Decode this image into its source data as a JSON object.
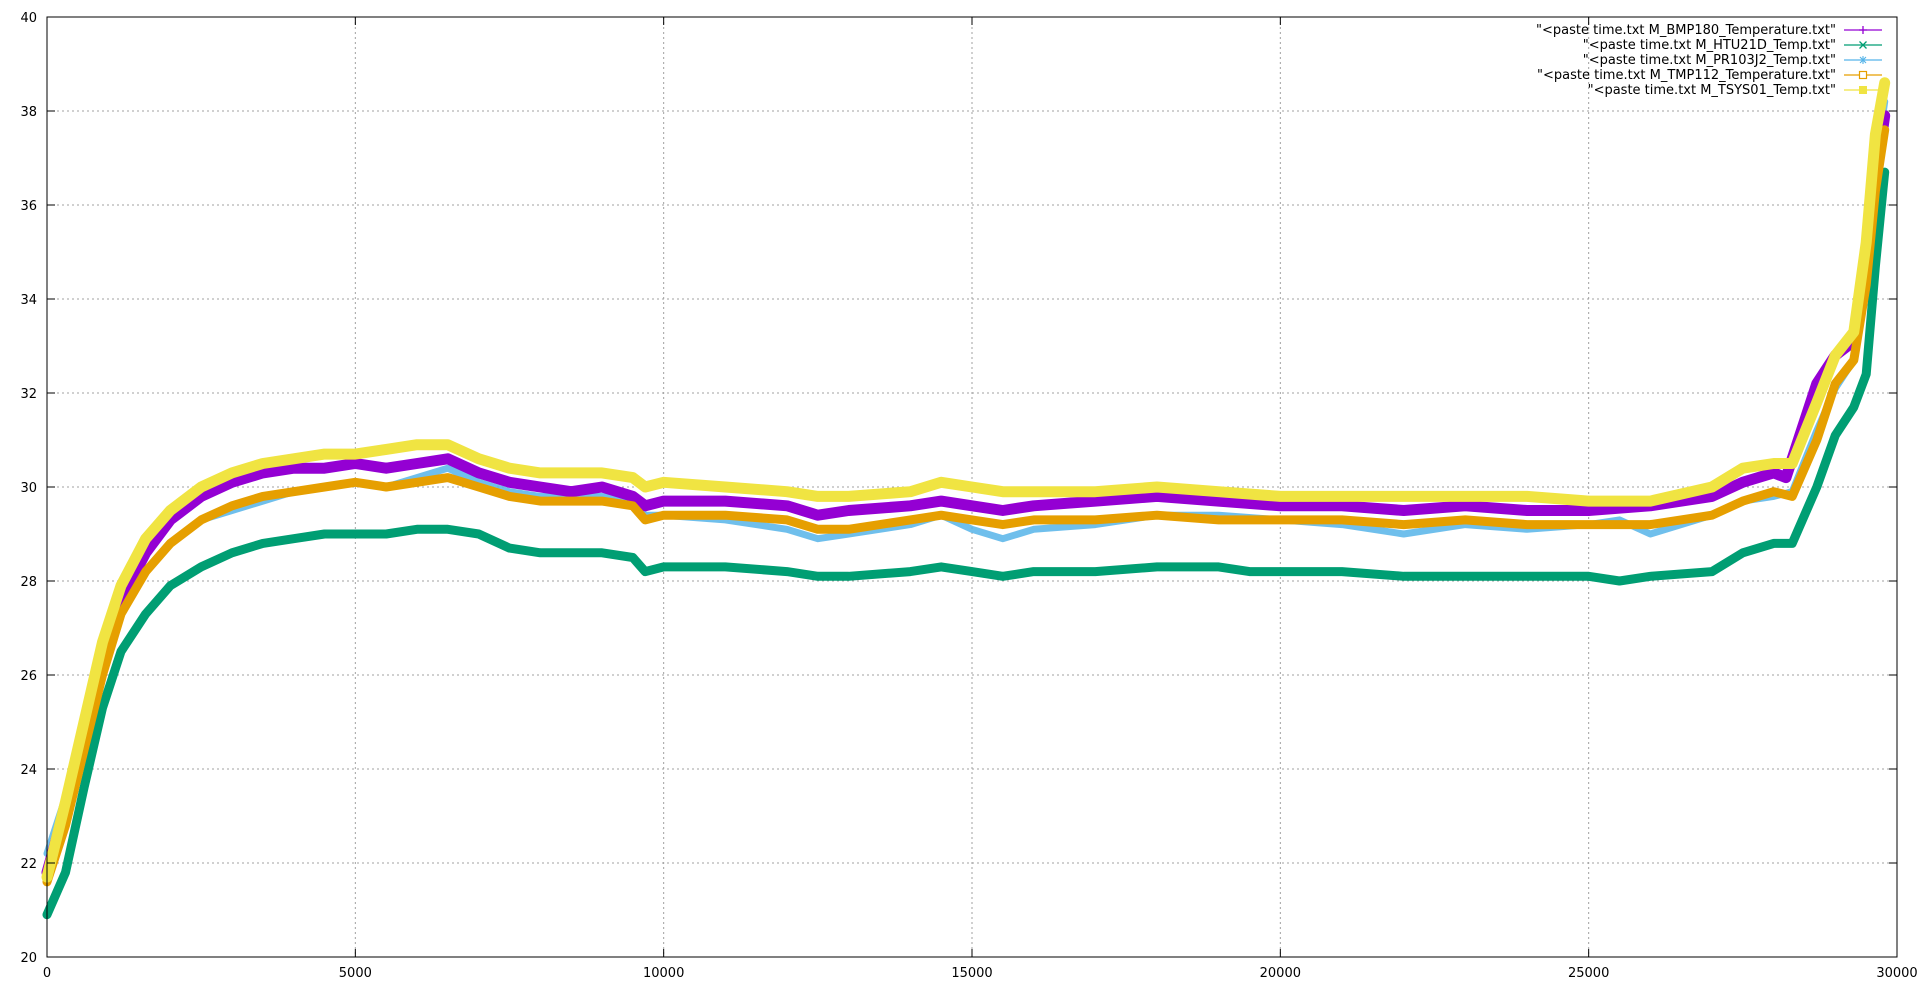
{
  "chart_data": {
    "type": "line",
    "title": "",
    "xlabel": "",
    "ylabel": "",
    "xlim": [
      0,
      30000
    ],
    "ylim": [
      20,
      40
    ],
    "x_ticks": [
      "0",
      "5000",
      "10000",
      "15000",
      "20000",
      "25000",
      "30000"
    ],
    "y_ticks": [
      "20",
      "22",
      "24",
      "26",
      "28",
      "30",
      "32",
      "34",
      "36",
      "38",
      "40"
    ],
    "grid": true,
    "legend_position": "top-right",
    "series": [
      {
        "name": "\"<paste time.txt M_BMP180_Temperature.txt\"",
        "color": "#9400d3",
        "marker": "plus",
        "points": [
          [
            0,
            21.8
          ],
          [
            300,
            23.2
          ],
          [
            600,
            24.8
          ],
          [
            900,
            26.3
          ],
          [
            1200,
            27.6
          ],
          [
            1600,
            28.6
          ],
          [
            2000,
            29.3
          ],
          [
            2500,
            29.8
          ],
          [
            3000,
            30.1
          ],
          [
            3500,
            30.3
          ],
          [
            4000,
            30.4
          ],
          [
            4500,
            30.4
          ],
          [
            5000,
            30.5
          ],
          [
            5500,
            30.4
          ],
          [
            6000,
            30.5
          ],
          [
            6500,
            30.6
          ],
          [
            7000,
            30.3
          ],
          [
            7500,
            30.1
          ],
          [
            8000,
            30.0
          ],
          [
            8500,
            29.9
          ],
          [
            9000,
            30.0
          ],
          [
            9500,
            29.8
          ],
          [
            9700,
            29.6
          ],
          [
            10000,
            29.7
          ],
          [
            11000,
            29.7
          ],
          [
            12000,
            29.6
          ],
          [
            12500,
            29.4
          ],
          [
            13000,
            29.5
          ],
          [
            14000,
            29.6
          ],
          [
            14500,
            29.7
          ],
          [
            15000,
            29.6
          ],
          [
            15500,
            29.5
          ],
          [
            16000,
            29.6
          ],
          [
            17000,
            29.7
          ],
          [
            18000,
            29.8
          ],
          [
            19000,
            29.7
          ],
          [
            20000,
            29.6
          ],
          [
            21000,
            29.6
          ],
          [
            22000,
            29.5
          ],
          [
            23000,
            29.6
          ],
          [
            24000,
            29.5
          ],
          [
            25000,
            29.5
          ],
          [
            26000,
            29.6
          ],
          [
            27000,
            29.8
          ],
          [
            27500,
            30.1
          ],
          [
            28000,
            30.3
          ],
          [
            28200,
            30.2
          ],
          [
            28400,
            31.0
          ],
          [
            28700,
            32.2
          ],
          [
            29000,
            32.8
          ],
          [
            29300,
            33.1
          ],
          [
            29500,
            34.5
          ],
          [
            29650,
            36.5
          ],
          [
            29800,
            37.9
          ]
        ]
      },
      {
        "name": "\"<paste time.txt M_HTU21D_Temp.txt\"",
        "color": "#009e73",
        "marker": "cross",
        "points": [
          [
            0,
            20.9
          ],
          [
            300,
            21.8
          ],
          [
            600,
            23.6
          ],
          [
            900,
            25.3
          ],
          [
            1200,
            26.5
          ],
          [
            1600,
            27.3
          ],
          [
            2000,
            27.9
          ],
          [
            2500,
            28.3
          ],
          [
            3000,
            28.6
          ],
          [
            3500,
            28.8
          ],
          [
            4000,
            28.9
          ],
          [
            4500,
            29.0
          ],
          [
            5000,
            29.0
          ],
          [
            5500,
            29.0
          ],
          [
            6000,
            29.1
          ],
          [
            6500,
            29.1
          ],
          [
            7000,
            29.0
          ],
          [
            7500,
            28.7
          ],
          [
            8000,
            28.6
          ],
          [
            8500,
            28.6
          ],
          [
            9000,
            28.6
          ],
          [
            9500,
            28.5
          ],
          [
            9700,
            28.2
          ],
          [
            10000,
            28.3
          ],
          [
            11000,
            28.3
          ],
          [
            12000,
            28.2
          ],
          [
            12500,
            28.1
          ],
          [
            13000,
            28.1
          ],
          [
            14000,
            28.2
          ],
          [
            14500,
            28.3
          ],
          [
            15000,
            28.2
          ],
          [
            15500,
            28.1
          ],
          [
            16000,
            28.2
          ],
          [
            17000,
            28.2
          ],
          [
            18000,
            28.3
          ],
          [
            19000,
            28.3
          ],
          [
            19500,
            28.2
          ],
          [
            20000,
            28.2
          ],
          [
            21000,
            28.2
          ],
          [
            22000,
            28.1
          ],
          [
            23000,
            28.1
          ],
          [
            24000,
            28.1
          ],
          [
            25000,
            28.1
          ],
          [
            25500,
            28.0
          ],
          [
            26000,
            28.1
          ],
          [
            27000,
            28.2
          ],
          [
            27500,
            28.6
          ],
          [
            28000,
            28.8
          ],
          [
            28300,
            28.8
          ],
          [
            28700,
            30.0
          ],
          [
            29000,
            31.1
          ],
          [
            29300,
            31.7
          ],
          [
            29500,
            32.4
          ],
          [
            29650,
            34.7
          ],
          [
            29800,
            36.7
          ]
        ]
      },
      {
        "name": "\"<paste time.txt M_PR103J2_Temp.txt\"",
        "color": "#56b4e9",
        "marker": "star",
        "points": [
          [
            0,
            22.2
          ],
          [
            300,
            23.4
          ],
          [
            600,
            24.6
          ],
          [
            900,
            26.1
          ],
          [
            1200,
            27.3
          ],
          [
            1600,
            28.2
          ],
          [
            2000,
            28.8
          ],
          [
            2500,
            29.3
          ],
          [
            3000,
            29.5
          ],
          [
            3500,
            29.7
          ],
          [
            4000,
            29.9
          ],
          [
            4500,
            30.0
          ],
          [
            5000,
            30.1
          ],
          [
            5500,
            30.0
          ],
          [
            6000,
            30.2
          ],
          [
            6500,
            30.4
          ],
          [
            7000,
            30.1
          ],
          [
            7500,
            29.9
          ],
          [
            8000,
            29.8
          ],
          [
            8500,
            29.8
          ],
          [
            9000,
            29.8
          ],
          [
            9500,
            29.7
          ],
          [
            9700,
            29.4
          ],
          [
            10000,
            29.4
          ],
          [
            11000,
            29.3
          ],
          [
            12000,
            29.1
          ],
          [
            12500,
            28.9
          ],
          [
            13000,
            29.0
          ],
          [
            14000,
            29.2
          ],
          [
            14500,
            29.4
          ],
          [
            15000,
            29.1
          ],
          [
            15500,
            28.9
          ],
          [
            16000,
            29.1
          ],
          [
            17000,
            29.2
          ],
          [
            18000,
            29.4
          ],
          [
            19000,
            29.4
          ],
          [
            20000,
            29.3
          ],
          [
            21000,
            29.2
          ],
          [
            22000,
            29.0
          ],
          [
            23000,
            29.2
          ],
          [
            24000,
            29.1
          ],
          [
            25000,
            29.2
          ],
          [
            25500,
            29.3
          ],
          [
            26000,
            29.0
          ],
          [
            27000,
            29.4
          ],
          [
            27500,
            29.7
          ],
          [
            28000,
            29.8
          ],
          [
            28300,
            29.9
          ],
          [
            28700,
            31.2
          ],
          [
            29000,
            32.1
          ],
          [
            29300,
            32.7
          ],
          [
            29500,
            34.5
          ],
          [
            29650,
            36.8
          ],
          [
            29800,
            38.2
          ]
        ]
      },
      {
        "name": "\"<paste time.txt M_TMP112_Temperature.txt\"",
        "color": "#e69f00",
        "marker": "square-open",
        "points": [
          [
            0,
            21.6
          ],
          [
            300,
            22.8
          ],
          [
            600,
            24.4
          ],
          [
            900,
            26.0
          ],
          [
            1200,
            27.3
          ],
          [
            1600,
            28.2
          ],
          [
            2000,
            28.8
          ],
          [
            2500,
            29.3
          ],
          [
            3000,
            29.6
          ],
          [
            3500,
            29.8
          ],
          [
            4000,
            29.9
          ],
          [
            4500,
            30.0
          ],
          [
            5000,
            30.1
          ],
          [
            5500,
            30.0
          ],
          [
            6000,
            30.1
          ],
          [
            6500,
            30.2
          ],
          [
            7000,
            30.0
          ],
          [
            7500,
            29.8
          ],
          [
            8000,
            29.7
          ],
          [
            8500,
            29.7
          ],
          [
            9000,
            29.7
          ],
          [
            9500,
            29.6
          ],
          [
            9700,
            29.3
          ],
          [
            10000,
            29.4
          ],
          [
            11000,
            29.4
          ],
          [
            12000,
            29.3
          ],
          [
            12500,
            29.1
          ],
          [
            13000,
            29.1
          ],
          [
            14000,
            29.3
          ],
          [
            14500,
            29.4
          ],
          [
            15000,
            29.3
          ],
          [
            15500,
            29.2
          ],
          [
            16000,
            29.3
          ],
          [
            17000,
            29.3
          ],
          [
            18000,
            29.4
          ],
          [
            19000,
            29.3
          ],
          [
            20000,
            29.3
          ],
          [
            21000,
            29.3
          ],
          [
            22000,
            29.2
          ],
          [
            23000,
            29.3
          ],
          [
            24000,
            29.2
          ],
          [
            25000,
            29.2
          ],
          [
            26000,
            29.2
          ],
          [
            27000,
            29.4
          ],
          [
            27500,
            29.7
          ],
          [
            28000,
            29.9
          ],
          [
            28300,
            29.8
          ],
          [
            28700,
            31.0
          ],
          [
            29000,
            32.2
          ],
          [
            29300,
            32.7
          ],
          [
            29500,
            34.3
          ],
          [
            29650,
            36.3
          ],
          [
            29800,
            37.6
          ]
        ]
      },
      {
        "name": "\"<paste time.txt M_TSYS01_Temp.txt\"",
        "color": "#f0e442",
        "marker": "square-filled",
        "points": [
          [
            0,
            21.7
          ],
          [
            300,
            23.3
          ],
          [
            600,
            25.0
          ],
          [
            900,
            26.7
          ],
          [
            1200,
            27.9
          ],
          [
            1600,
            28.9
          ],
          [
            2000,
            29.5
          ],
          [
            2500,
            30.0
          ],
          [
            3000,
            30.3
          ],
          [
            3500,
            30.5
          ],
          [
            4000,
            30.6
          ],
          [
            4500,
            30.7
          ],
          [
            5000,
            30.7
          ],
          [
            5500,
            30.8
          ],
          [
            6000,
            30.9
          ],
          [
            6500,
            30.9
          ],
          [
            7000,
            30.6
          ],
          [
            7500,
            30.4
          ],
          [
            8000,
            30.3
          ],
          [
            8500,
            30.3
          ],
          [
            9000,
            30.3
          ],
          [
            9500,
            30.2
          ],
          [
            9700,
            30.0
          ],
          [
            10000,
            30.1
          ],
          [
            11000,
            30.0
          ],
          [
            12000,
            29.9
          ],
          [
            12500,
            29.8
          ],
          [
            13000,
            29.8
          ],
          [
            14000,
            29.9
          ],
          [
            14500,
            30.1
          ],
          [
            15000,
            30.0
          ],
          [
            15500,
            29.9
          ],
          [
            16000,
            29.9
          ],
          [
            17000,
            29.9
          ],
          [
            18000,
            30.0
          ],
          [
            19000,
            29.9
          ],
          [
            20000,
            29.8
          ],
          [
            21000,
            29.8
          ],
          [
            22000,
            29.8
          ],
          [
            23000,
            29.8
          ],
          [
            24000,
            29.8
          ],
          [
            25000,
            29.7
          ],
          [
            26000,
            29.7
          ],
          [
            27000,
            30.0
          ],
          [
            27500,
            30.4
          ],
          [
            28000,
            30.5
          ],
          [
            28300,
            30.5
          ],
          [
            28700,
            31.8
          ],
          [
            29000,
            32.8
          ],
          [
            29300,
            33.3
          ],
          [
            29500,
            35.2
          ],
          [
            29650,
            37.5
          ],
          [
            29800,
            38.6
          ]
        ]
      }
    ]
  }
}
